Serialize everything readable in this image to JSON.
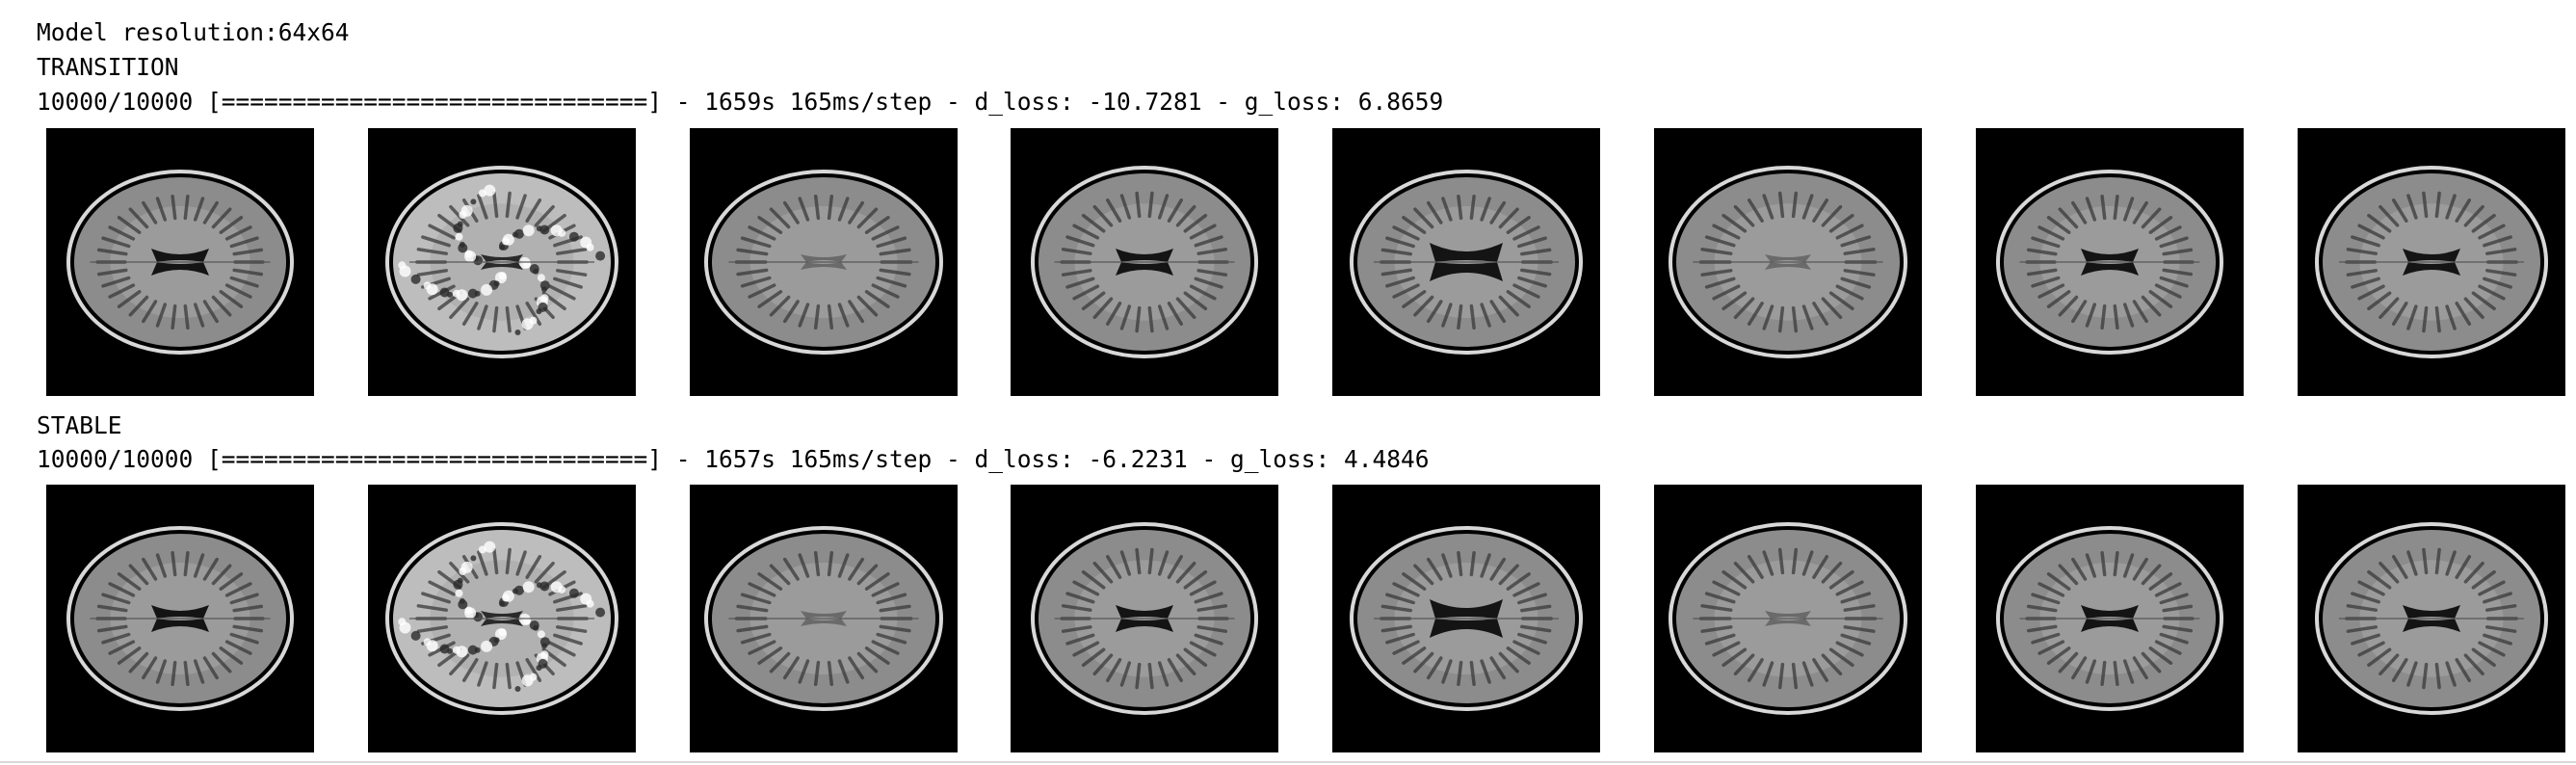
{
  "output": {
    "model_resolution": "Model resolution:64x64",
    "sections": [
      {
        "phase": "TRANSITION",
        "progress": "10000/10000 [==============================] - 1659s 165ms/step - d_loss: -10.7281 - g_loss: 6.8659",
        "samples": [
          {
            "icon": "brain-mri-slice-icon",
            "variant": "normal"
          },
          {
            "icon": "brain-mri-slice-icon",
            "variant": "noisy-bright"
          },
          {
            "icon": "brain-mri-slice-icon",
            "variant": "faint-ventricles"
          },
          {
            "icon": "brain-mri-slice-icon",
            "variant": "dark-ventricles"
          },
          {
            "icon": "brain-mri-slice-icon",
            "variant": "large-ventricles"
          },
          {
            "icon": "brain-mri-slice-icon",
            "variant": "faint-ventricles"
          },
          {
            "icon": "brain-mri-slice-icon",
            "variant": "dark-ventricles"
          },
          {
            "icon": "brain-mri-slice-icon",
            "variant": "normal"
          }
        ]
      },
      {
        "phase": "STABLE",
        "progress": "10000/10000 [==============================] - 1657s 165ms/step - d_loss: -6.2231 - g_loss: 4.4846",
        "samples": [
          {
            "icon": "brain-mri-slice-icon",
            "variant": "normal"
          },
          {
            "icon": "brain-mri-slice-icon",
            "variant": "noisy-bright"
          },
          {
            "icon": "brain-mri-slice-icon",
            "variant": "faint-ventricles"
          },
          {
            "icon": "brain-mri-slice-icon",
            "variant": "dark-ventricles"
          },
          {
            "icon": "brain-mri-slice-icon",
            "variant": "large-ventricles"
          },
          {
            "icon": "brain-mri-slice-icon",
            "variant": "faint-ventricles"
          },
          {
            "icon": "brain-mri-slice-icon",
            "variant": "dark-ventricles"
          },
          {
            "icon": "brain-mri-slice-icon",
            "variant": "normal"
          }
        ]
      }
    ]
  }
}
